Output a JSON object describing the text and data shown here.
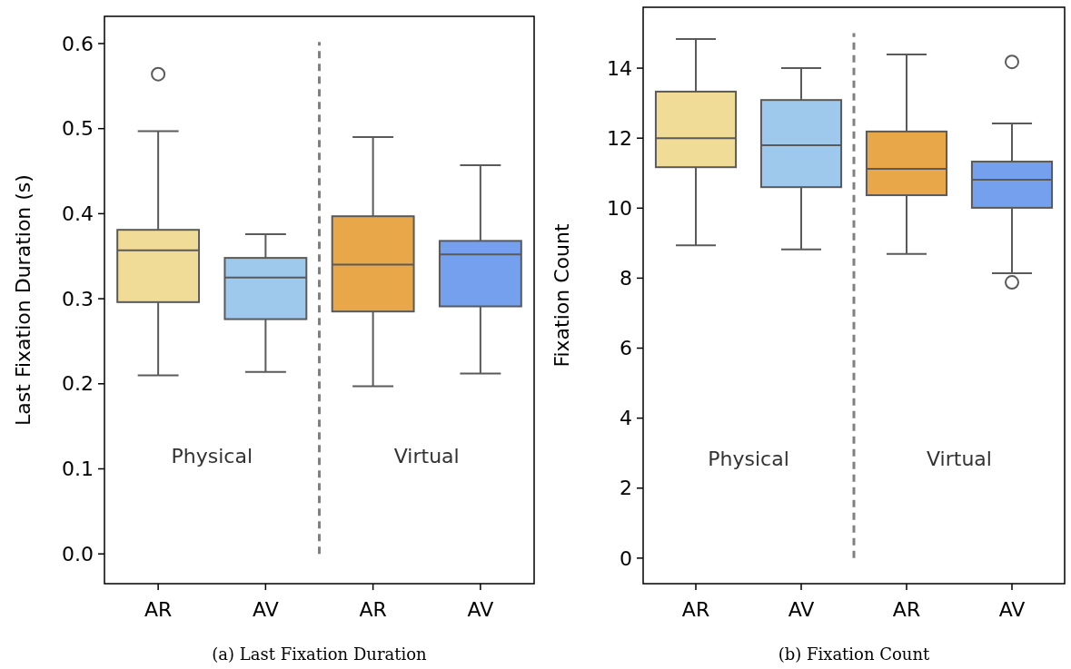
{
  "chart_data": [
    {
      "type": "box",
      "title": "(a) Last Fixation Duration",
      "ylabel": "Last Fixation Duration (s)",
      "categories": [
        "AR",
        "AV",
        "AR",
        "AV"
      ],
      "colors": [
        "#f0dc96",
        "#9ec9ec",
        "#e8a84a",
        "#74a0ee"
      ],
      "boxes": [
        {
          "low": 0.21,
          "q1": 0.296,
          "median": 0.357,
          "q3": 0.381,
          "high": 0.497,
          "outliers": [
            0.564
          ]
        },
        {
          "low": 0.214,
          "q1": 0.276,
          "median": 0.325,
          "q3": 0.348,
          "high": 0.376
        },
        {
          "low": 0.197,
          "q1": 0.285,
          "median": 0.34,
          "q3": 0.397,
          "high": 0.49
        },
        {
          "low": 0.212,
          "q1": 0.291,
          "median": 0.352,
          "q3": 0.368,
          "high": 0.457
        }
      ],
      "ylim": [
        -0.035,
        0.632
      ],
      "yticks": [
        {
          "value": 0,
          "label": "0.0"
        },
        0.1,
        0.2,
        0.3,
        0.4,
        0.5,
        0.6
      ],
      "grid": false,
      "annotations": [
        "Physical",
        "Virtual"
      ]
    },
    {
      "type": "box",
      "title": "(b) Fixation Count",
      "ylabel": "Fixation Count",
      "categories": [
        "AR",
        "AV",
        "AR",
        "AV"
      ],
      "colors": [
        "#f0dc96",
        "#9ec9ec",
        "#e8a84a",
        "#74a0ee"
      ],
      "boxes": [
        {
          "low": 8.94,
          "q1": 11.17,
          "median": 12.0,
          "q3": 13.33,
          "high": 14.83
        },
        {
          "low": 8.82,
          "q1": 10.6,
          "median": 11.8,
          "q3": 13.09,
          "high": 14.0
        },
        {
          "low": 8.69,
          "q1": 10.37,
          "median": 11.12,
          "q3": 12.19,
          "high": 14.39
        },
        {
          "low": 8.14,
          "q1": 10.01,
          "median": 10.81,
          "q3": 11.33,
          "high": 12.42,
          "outliers": [
            14.18,
            7.88
          ]
        }
      ],
      "ylim": [
        -0.73,
        15.74
      ],
      "yticks": [
        0,
        2,
        4,
        6,
        8,
        10,
        12,
        14
      ],
      "grid": false,
      "annotations": [
        "Physical",
        "Virtual"
      ]
    }
  ]
}
